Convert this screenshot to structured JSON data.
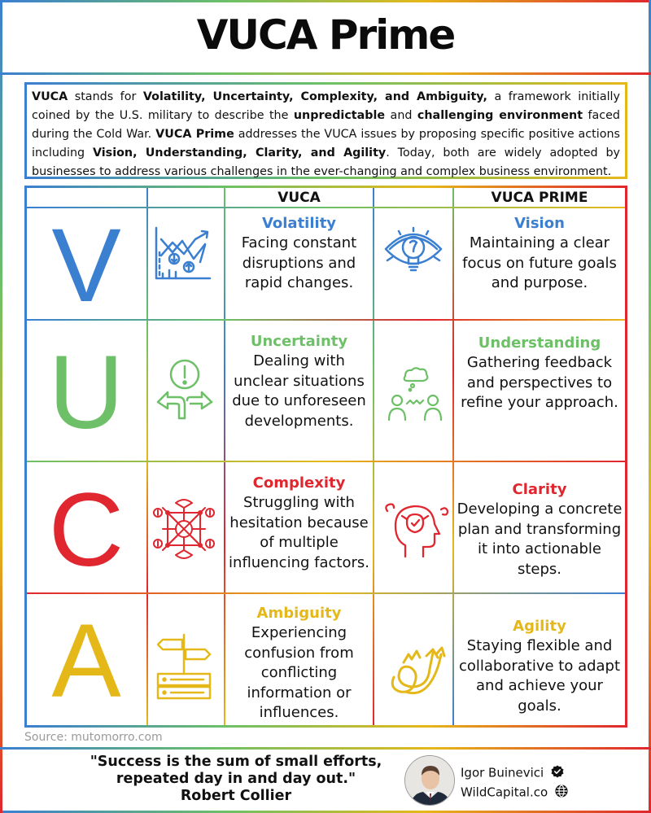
{
  "title": "VUCA Prime",
  "intro": {
    "p1": "VUCA",
    "p2": " stands for ",
    "p3": "Volatility, Uncertainty, Complexity, and Ambiguity,",
    "p4": " a framework initially coined by the U.S. military to describe the ",
    "p5": "unpredictable",
    "p6": " and ",
    "p7": "challenging environment",
    "p8": " faced during the Cold War. ",
    "p9": "VUCA Prime",
    "p10": " addresses the VUCA issues by proposing specific positive actions including ",
    "p11": "Vision, Understanding, Clarity, and Agility",
    "p12": ". Today, both are widely adopted by businesses to address various challenges in the ever-changing and complex business environment."
  },
  "table": {
    "header_vuca": "VUCA",
    "header_prime": "VUCA PRIME",
    "rows": [
      {
        "letter": "V",
        "color": "#3b7fd1",
        "vuca_title": "Volatility",
        "vuca_desc": "Facing constant disruptions and rapid changes.",
        "prime_title": "Vision",
        "prime_desc": "Maintaining a clear focus on future goals and purpose.",
        "vuca_icon": "chart-arrows-icon",
        "prime_icon": "eye-lightbulb-icon"
      },
      {
        "letter": "U",
        "color": "#6dc067",
        "vuca_title": "Uncertainty",
        "vuca_desc": "Dealing with unclear situations due to unforeseen developments.",
        "prime_title": "Understanding",
        "prime_desc": "Gathering feedback and perspectives to refine your approach.",
        "vuca_icon": "crossroads-alert-icon",
        "prime_icon": "people-discussion-icon"
      },
      {
        "letter": "C",
        "color": "#e0262e",
        "vuca_title": "Complexity",
        "vuca_desc": "Struggling with hesitation because of multiple influencing factors.",
        "prime_title": "Clarity",
        "prime_desc": "Developing a concrete plan and transforming it into actionable steps.",
        "vuca_icon": "network-hub-icon",
        "prime_icon": "head-brain-icon"
      },
      {
        "letter": "A",
        "color": "#e5b81a",
        "vuca_title": "Ambiguity",
        "vuca_desc": "Experiencing confusion from conflicting information or influences.",
        "prime_title": "Agility",
        "prime_desc": "Staying flexible and collaborative to adapt and achieve your goals.",
        "vuca_icon": "signpost-icon",
        "prime_icon": "tangled-arrows-icon"
      }
    ]
  },
  "source": "Source: mutomorro.com",
  "quote": {
    "line1": "\"Success is the sum of small efforts,",
    "line2": "repeated day in and day out.\"",
    "author": "Robert Collier"
  },
  "profile": {
    "name": "Igor Buinevici",
    "site": "WildCapital.co"
  }
}
